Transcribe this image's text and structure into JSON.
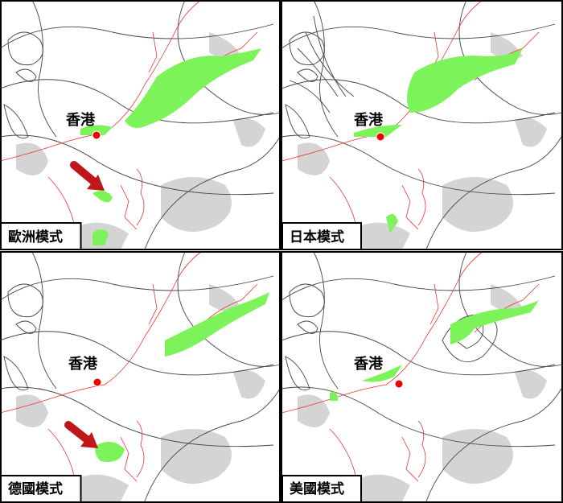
{
  "panels": [
    {
      "label": "歐洲模式",
      "city": "香港"
    },
    {
      "label": "日本模式",
      "city": "香港"
    },
    {
      "label": "德國模式",
      "city": "香港"
    },
    {
      "label": "美國模式",
      "city": "香港"
    }
  ]
}
